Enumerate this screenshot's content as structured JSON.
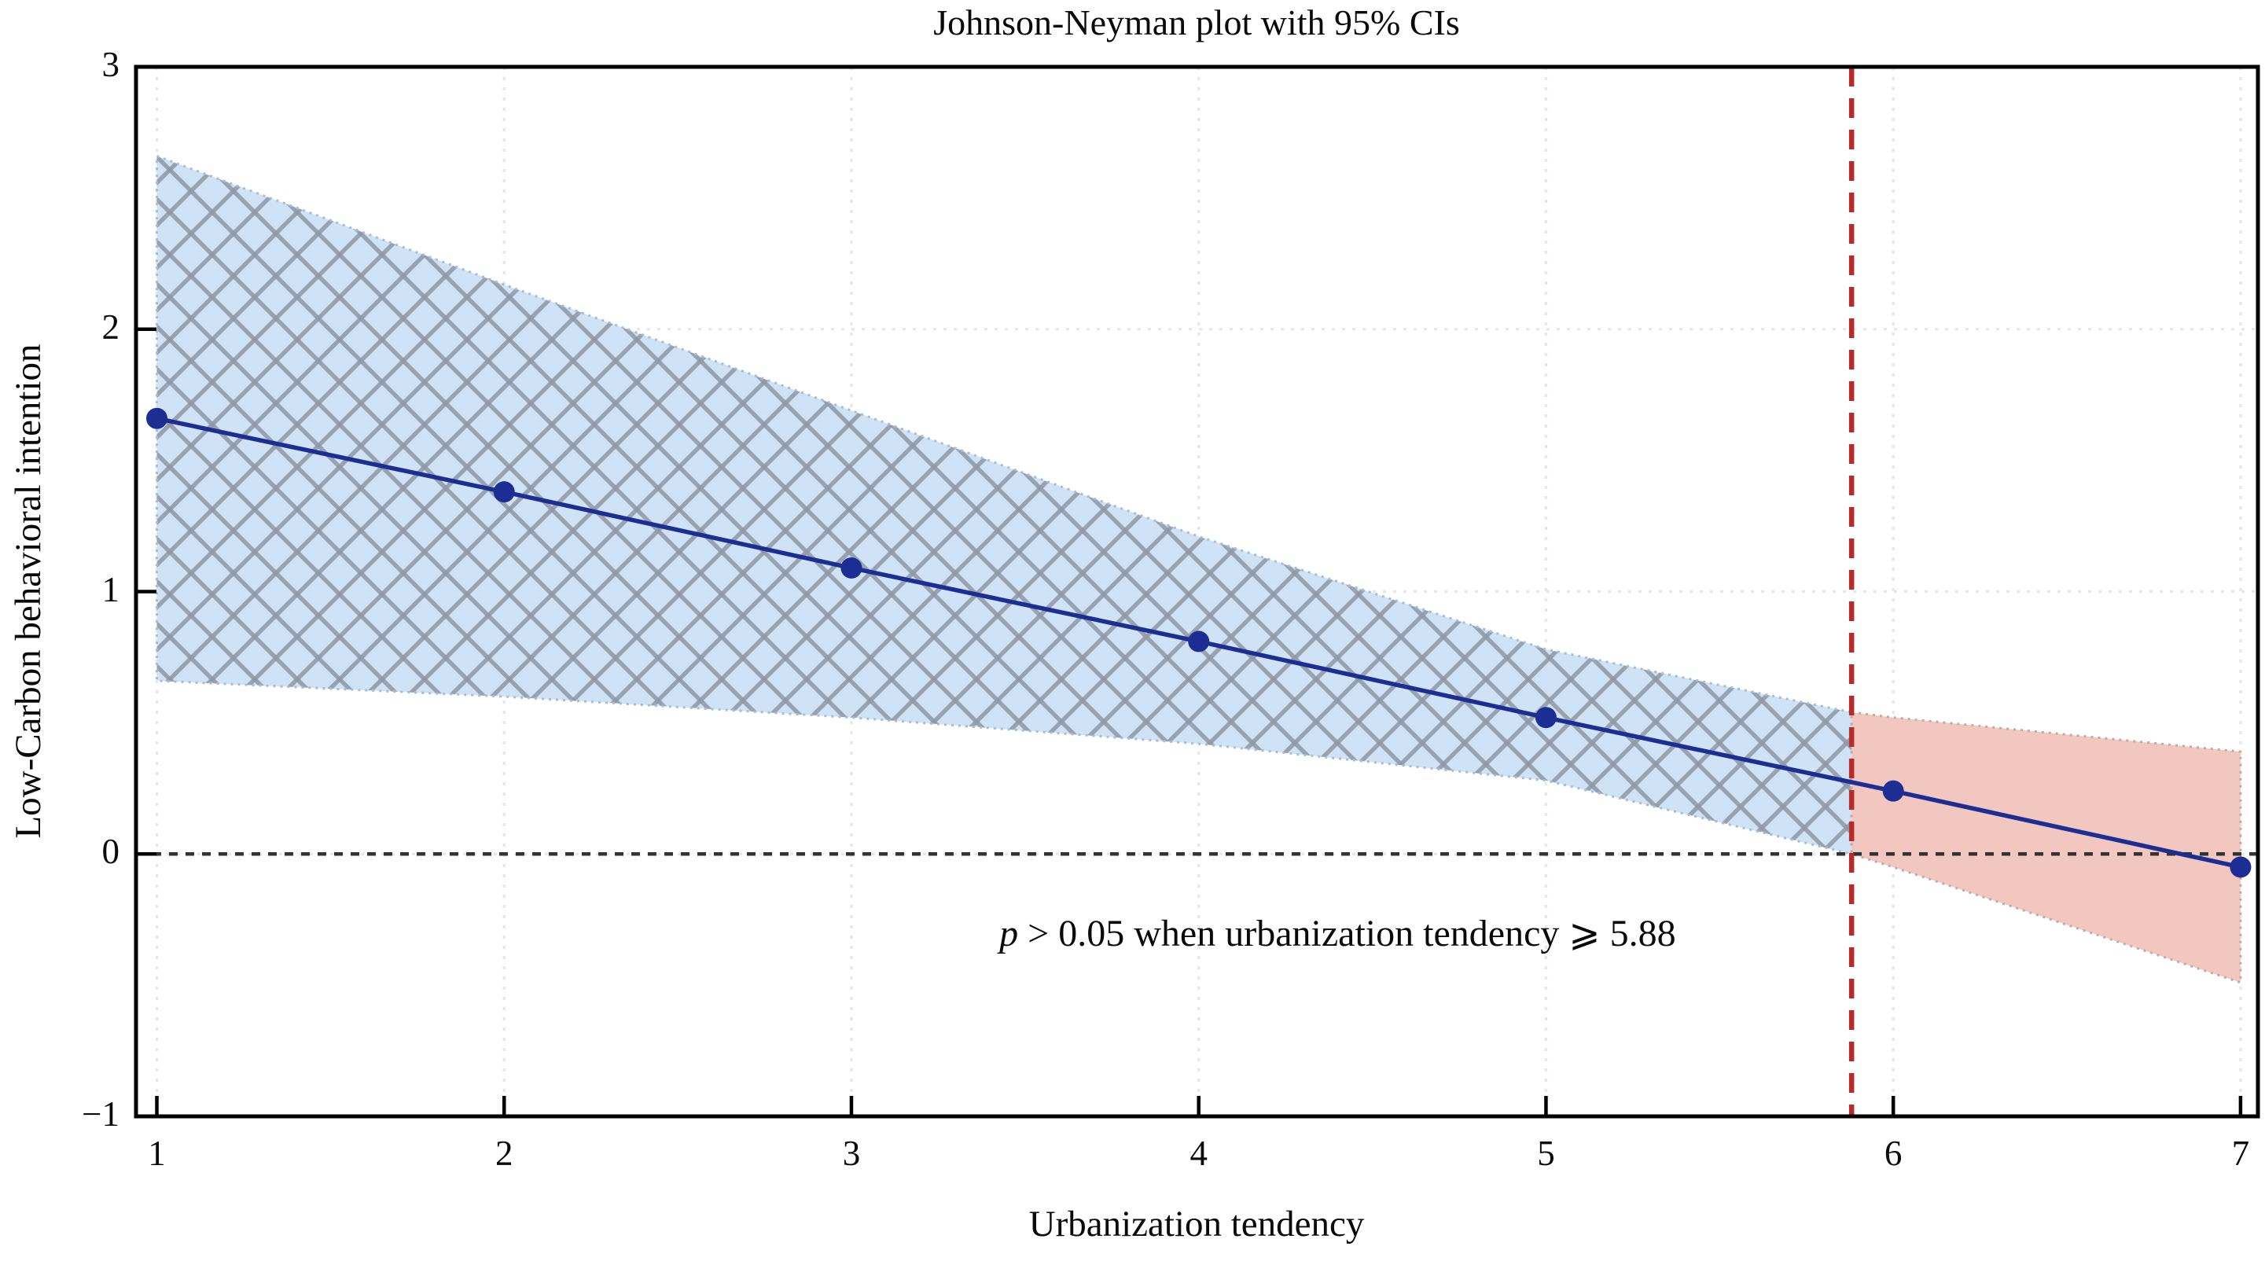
{
  "chart_data": {
    "type": "line",
    "title": "Johnson-Neyman plot with 95% CIs",
    "xlabel": "Urbanization tendency",
    "ylabel": "Low-Carbon behavioral intention",
    "x_axis": {
      "min": 0.94,
      "max": 7.05,
      "ticks": [
        1,
        2,
        3,
        4,
        5,
        6,
        7
      ],
      "tick_labels": [
        "1",
        "2",
        "3",
        "4",
        "5",
        "6",
        "7"
      ]
    },
    "y_axis": {
      "min": -1,
      "max": 3,
      "ticks": [
        3,
        2,
        1,
        0,
        -1
      ],
      "tick_labels": [
        "3",
        "2",
        "1",
        "0",
        "−1"
      ]
    },
    "grid": {
      "x_values": [
        1,
        2,
        3,
        4,
        5,
        6,
        7
      ],
      "y_values": [
        2,
        1,
        0
      ],
      "on": true
    },
    "series": [
      {
        "name": "simple-slope-line",
        "x": [
          1,
          2,
          3,
          4,
          5,
          6,
          7
        ],
        "y": [
          1.66,
          1.38,
          1.09,
          0.81,
          0.52,
          0.24,
          -0.05
        ],
        "color": "#1c2e94",
        "marker": "circle"
      }
    ],
    "ci_band": {
      "x": [
        1,
        2,
        3,
        4,
        5,
        5.88,
        6,
        7
      ],
      "upper": [
        2.66,
        2.17,
        1.69,
        1.21,
        0.78,
        0.54,
        0.52,
        0.39
      ],
      "lower": [
        0.66,
        0.6,
        0.52,
        0.42,
        0.28,
        0.0,
        -0.05,
        -0.49
      ],
      "significant_fill": "#d0e2f6",
      "significant_edge": "#a9bcd6",
      "hatch_color": "#8e98a6",
      "nonsignificant_fill": "#f2c7bf",
      "nonsignificant_edge": "#c3aaa4"
    },
    "jn_point": 5.88,
    "jn_line_color": "#b72b2b",
    "zero_line_y": 0,
    "zero_line_color": "#333333",
    "grid_color": "#e8e8e8",
    "frame_color": "#000000",
    "annotation": {
      "italic": "p",
      "text": " > 0.05 when urbanization tendency ⩾ 5.88",
      "x": 4.4,
      "y": -0.31
    }
  }
}
